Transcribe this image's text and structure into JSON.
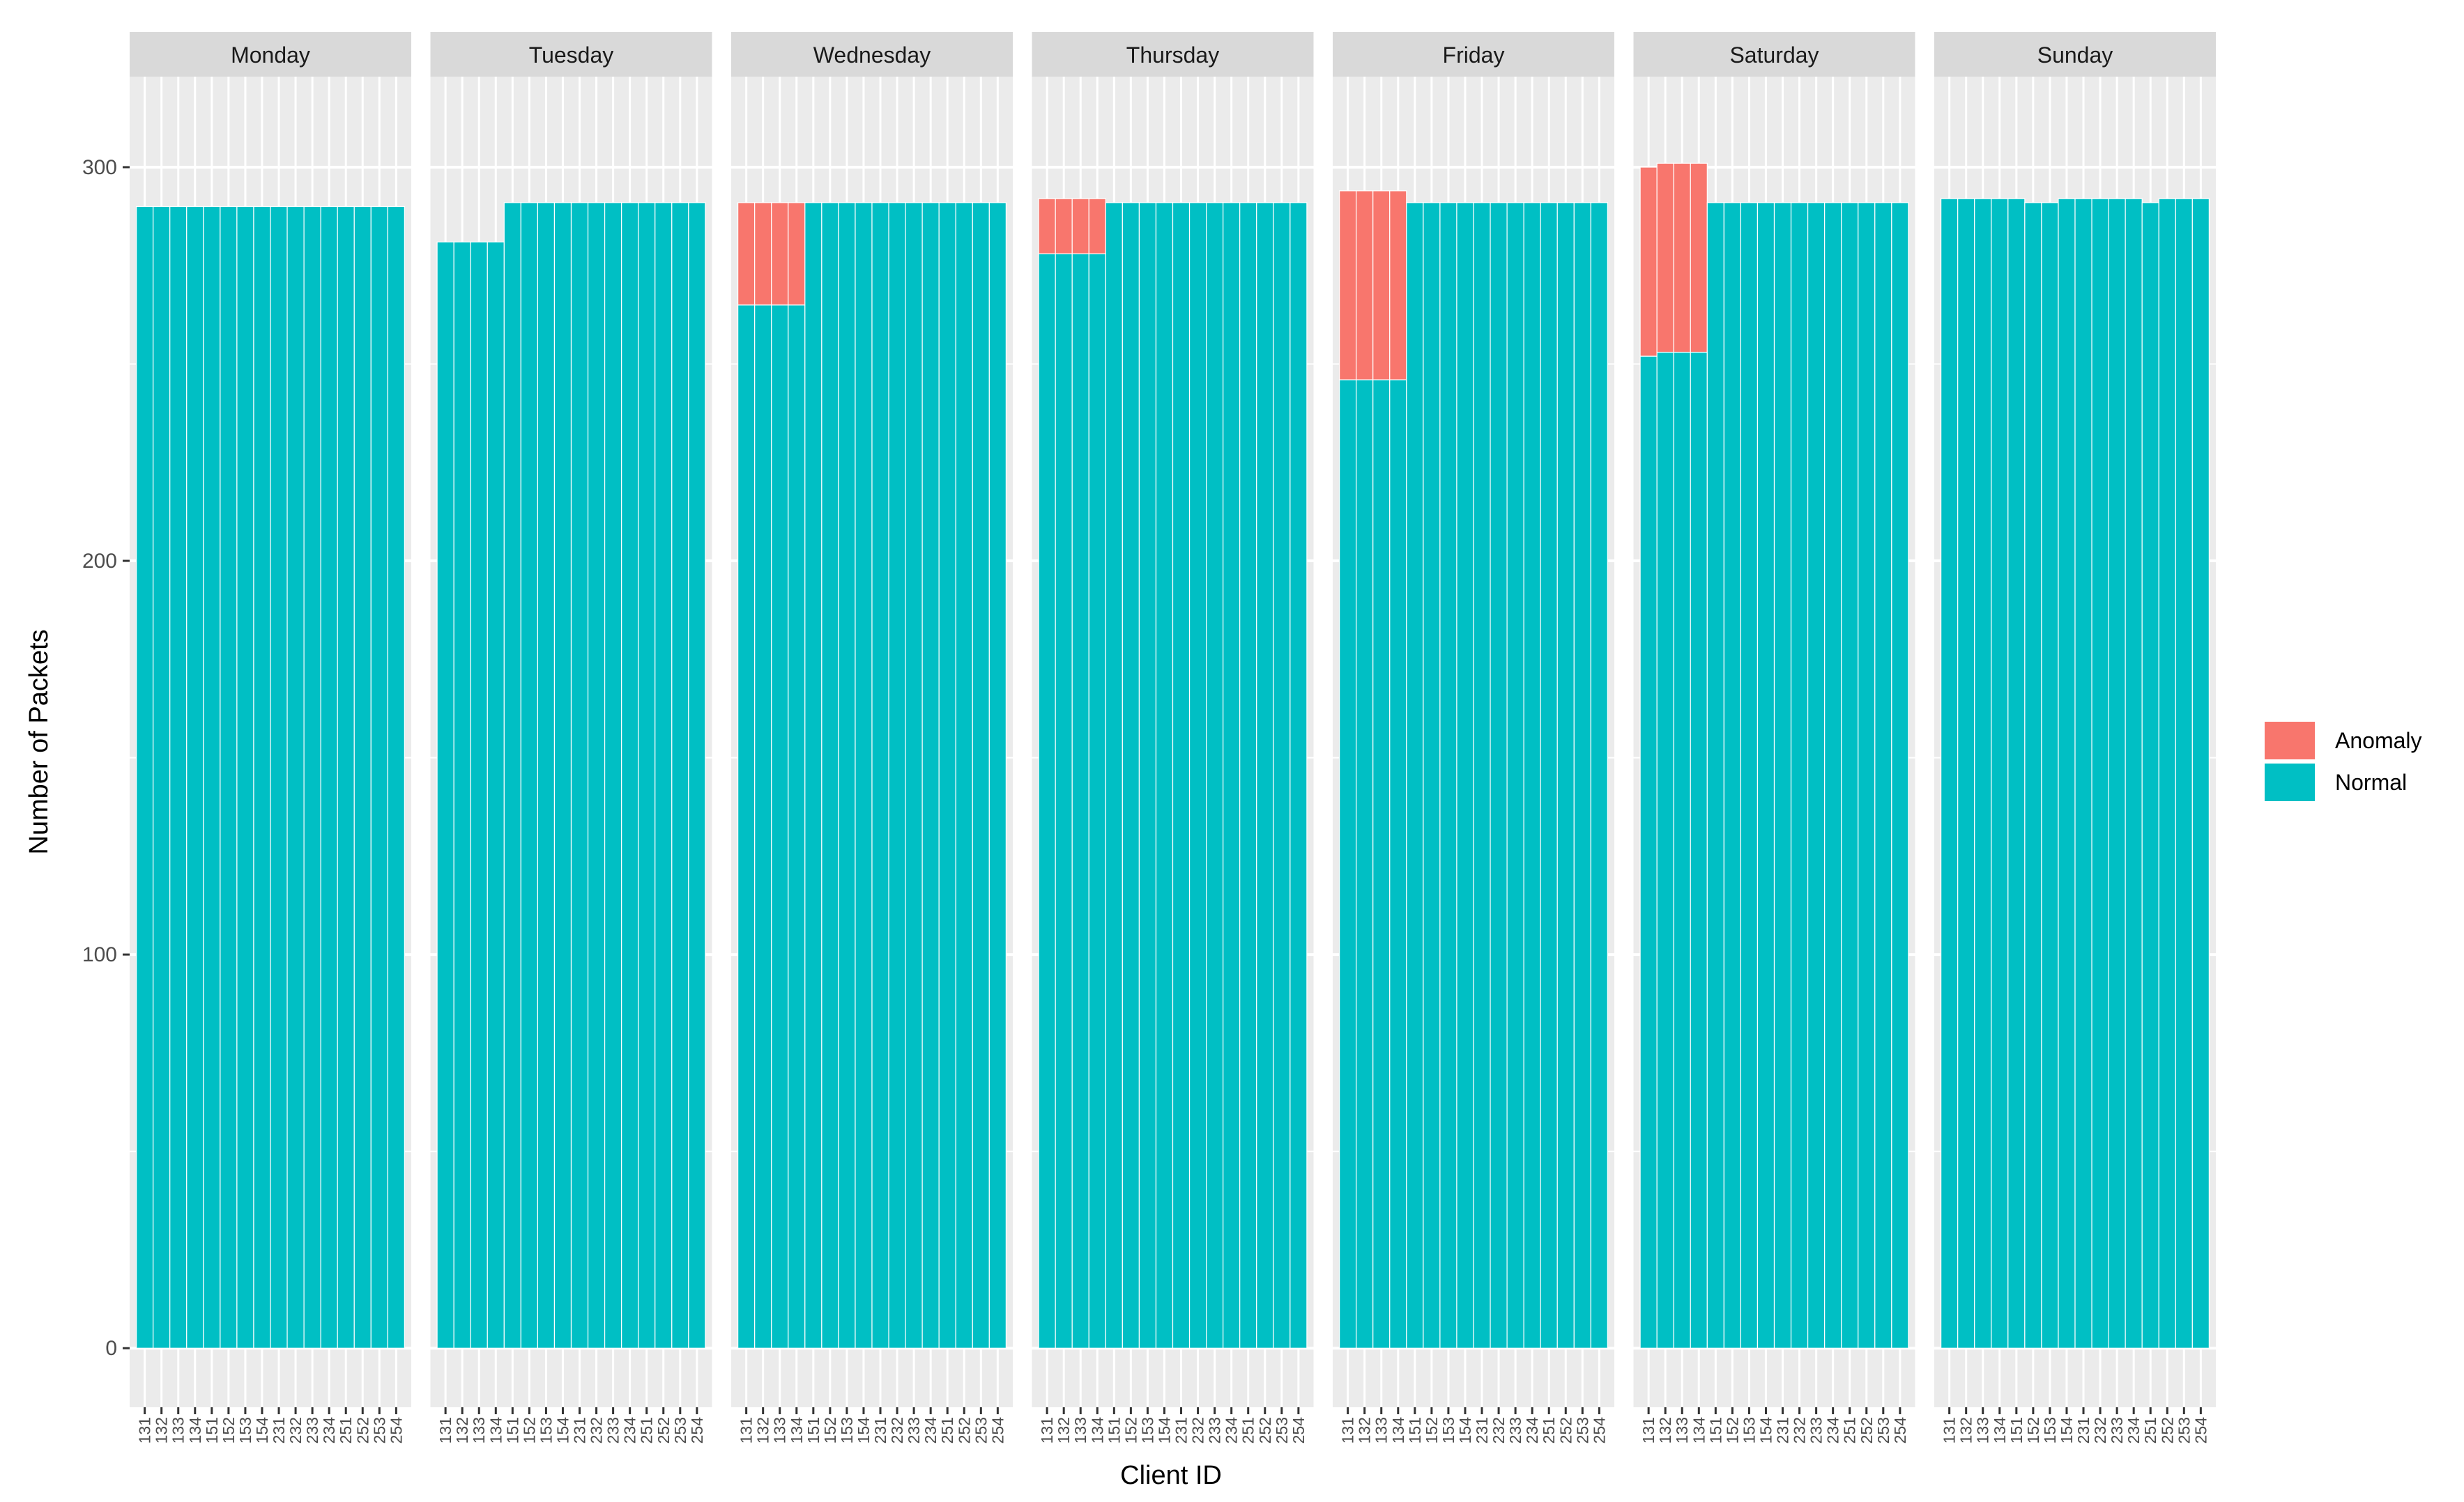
{
  "chart_data": {
    "type": "bar",
    "stacked": true,
    "faceted_by": "day",
    "title": "",
    "xlabel": "Client ID",
    "ylabel": "Number of Packets",
    "ylim": [
      -15,
      323
    ],
    "yticks": [
      0,
      100,
      200,
      300
    ],
    "grid": true,
    "legend_position": "right",
    "categories": [
      "131",
      "132",
      "133",
      "134",
      "151",
      "152",
      "153",
      "154",
      "231",
      "232",
      "233",
      "234",
      "251",
      "252",
      "253",
      "254"
    ],
    "legend": [
      {
        "name": "Anomaly",
        "color": "#F8766D"
      },
      {
        "name": "Normal",
        "color": "#00BFC4"
      }
    ],
    "facets": [
      {
        "label": "Monday",
        "normal": [
          290,
          290,
          290,
          290,
          290,
          290,
          290,
          290,
          290,
          290,
          290,
          290,
          290,
          290,
          290,
          290
        ],
        "anomaly": [
          0,
          0,
          0,
          0,
          0,
          0,
          0,
          0,
          0,
          0,
          0,
          0,
          0,
          0,
          0,
          0
        ]
      },
      {
        "label": "Tuesday",
        "normal": [
          281,
          281,
          281,
          281,
          291,
          291,
          291,
          291,
          291,
          291,
          291,
          291,
          291,
          291,
          291,
          291
        ],
        "anomaly": [
          0,
          0,
          0,
          0,
          0,
          0,
          0,
          0,
          0,
          0,
          0,
          0,
          0,
          0,
          0,
          0
        ]
      },
      {
        "label": "Wednesday",
        "normal": [
          265,
          265,
          265,
          265,
          291,
          291,
          291,
          291,
          291,
          291,
          291,
          291,
          291,
          291,
          291,
          291
        ],
        "anomaly": [
          26,
          26,
          26,
          26,
          0,
          0,
          0,
          0,
          0,
          0,
          0,
          0,
          0,
          0,
          0,
          0
        ]
      },
      {
        "label": "Thursday",
        "normal": [
          278,
          278,
          278,
          278,
          291,
          291,
          291,
          291,
          291,
          291,
          291,
          291,
          291,
          291,
          291,
          291
        ],
        "anomaly": [
          14,
          14,
          14,
          14,
          0,
          0,
          0,
          0,
          0,
          0,
          0,
          0,
          0,
          0,
          0,
          0
        ]
      },
      {
        "label": "Friday",
        "normal": [
          246,
          246,
          246,
          246,
          291,
          291,
          291,
          291,
          291,
          291,
          291,
          291,
          291,
          291,
          291,
          291
        ],
        "anomaly": [
          48,
          48,
          48,
          48,
          0,
          0,
          0,
          0,
          0,
          0,
          0,
          0,
          0,
          0,
          0,
          0
        ]
      },
      {
        "label": "Saturday",
        "normal": [
          252,
          253,
          253,
          253,
          291,
          291,
          291,
          291,
          291,
          291,
          291,
          291,
          291,
          291,
          291,
          291
        ],
        "anomaly": [
          48,
          48,
          48,
          48,
          0,
          0,
          0,
          0,
          0,
          0,
          0,
          0,
          0,
          0,
          0,
          0
        ]
      },
      {
        "label": "Sunday",
        "normal": [
          292,
          292,
          292,
          292,
          292,
          291,
          291,
          292,
          292,
          292,
          292,
          292,
          291,
          292,
          292,
          292
        ],
        "anomaly": [
          0,
          0,
          0,
          0,
          0,
          0,
          0,
          0,
          0,
          0,
          0,
          0,
          0,
          0,
          0,
          0
        ]
      }
    ]
  }
}
